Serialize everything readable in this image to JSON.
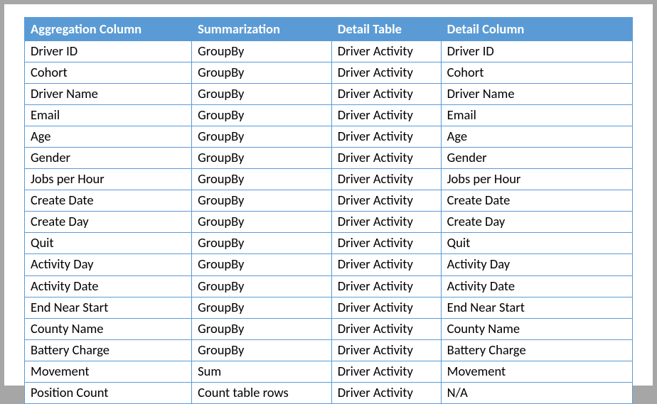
{
  "table": {
    "header_bg": "#5b9bd5",
    "header_fg": "#ffffff",
    "border_color": "#5b9bd5",
    "columns": [
      "Aggregation Column",
      "Summarization",
      "Detail Table",
      "Detail Column"
    ],
    "rows": [
      [
        "Driver ID",
        "GroupBy",
        "Driver Activity",
        "Driver ID"
      ],
      [
        "Cohort",
        "GroupBy",
        "Driver Activity",
        "Cohort"
      ],
      [
        "Driver Name",
        "GroupBy",
        "Driver Activity",
        "Driver Name"
      ],
      [
        "Email",
        "GroupBy",
        "Driver Activity",
        "Email"
      ],
      [
        "Age",
        "GroupBy",
        "Driver Activity",
        "Age"
      ],
      [
        "Gender",
        "GroupBy",
        "Driver Activity",
        "Gender"
      ],
      [
        "Jobs per Hour",
        "GroupBy",
        "Driver Activity",
        "Jobs per Hour"
      ],
      [
        "Create Date",
        "GroupBy",
        "Driver Activity",
        "Create Date"
      ],
      [
        "Create Day",
        "GroupBy",
        "Driver Activity",
        "Create Day"
      ],
      [
        "Quit",
        "GroupBy",
        "Driver Activity",
        "Quit"
      ],
      [
        "Activity Day",
        "GroupBy",
        "Driver Activity",
        "Activity Day"
      ],
      [
        "Activity Date",
        "GroupBy",
        "Driver Activity",
        "Activity Date"
      ],
      [
        "End Near Start",
        "GroupBy",
        "Driver Activity",
        "End Near Start"
      ],
      [
        "County Name",
        "GroupBy",
        "Driver Activity",
        "County Name"
      ],
      [
        "Battery Charge",
        "GroupBy",
        "Driver Activity",
        "Battery Charge"
      ],
      [
        "Movement",
        "Sum",
        "Driver Activity",
        "Movement"
      ],
      [
        "Position Count",
        "Count table rows",
        "Driver Activity",
        "N/A"
      ]
    ]
  }
}
